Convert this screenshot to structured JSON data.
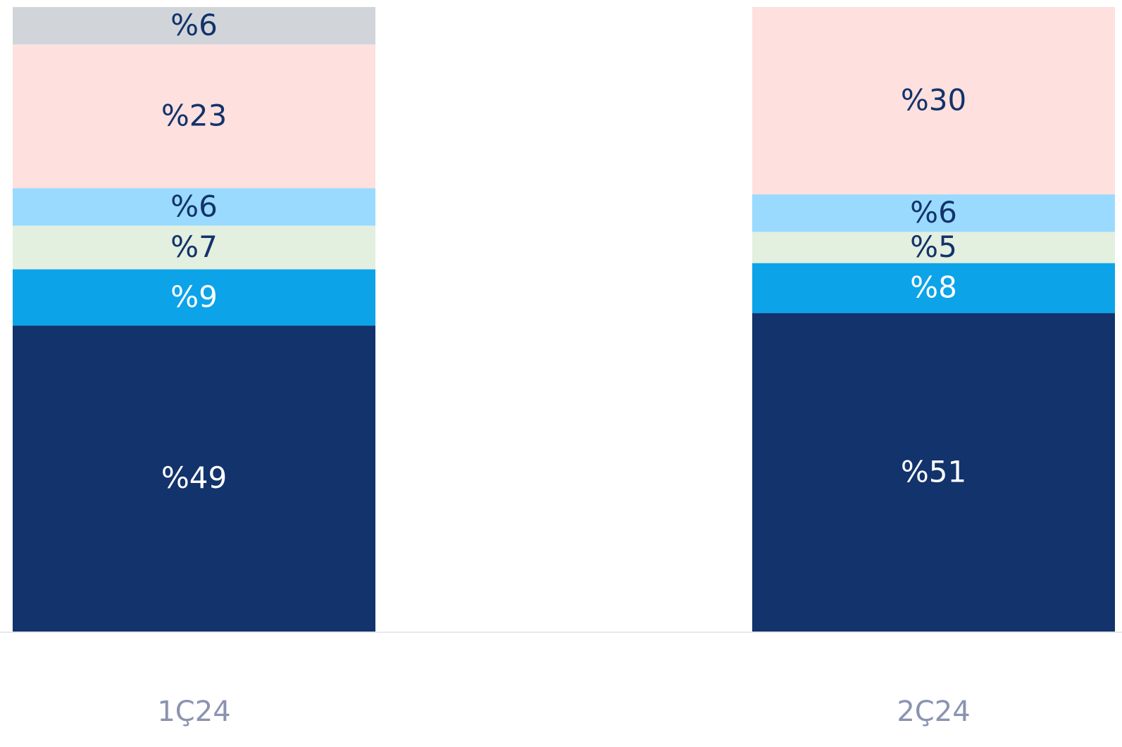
{
  "chart_data": {
    "type": "stacked_bar",
    "categories": [
      "1Ç24",
      "2Ç24"
    ],
    "series": [
      {
        "color": "#12336b",
        "values": [
          49,
          51
        ],
        "value_labels": [
          "%49",
          "%51"
        ]
      },
      {
        "color": "#0ca3e9",
        "values": [
          9,
          8
        ],
        "value_labels": [
          "%9",
          "%8"
        ]
      },
      {
        "color": "#e3efdf",
        "values": [
          7,
          5
        ],
        "value_labels": [
          "%7",
          "%5"
        ]
      },
      {
        "color": "#9adafe",
        "values": [
          6,
          6
        ],
        "value_labels": [
          "%6",
          "%6"
        ]
      },
      {
        "color": "#fee0de",
        "values": [
          23,
          30
        ],
        "value_labels": [
          "%23",
          "%30"
        ]
      },
      {
        "color": "#d1d5da",
        "values": [
          6,
          null
        ],
        "value_labels": [
          "%6",
          null
        ]
      }
    ],
    "ylim": [
      0,
      100
    ],
    "grid": false
  }
}
